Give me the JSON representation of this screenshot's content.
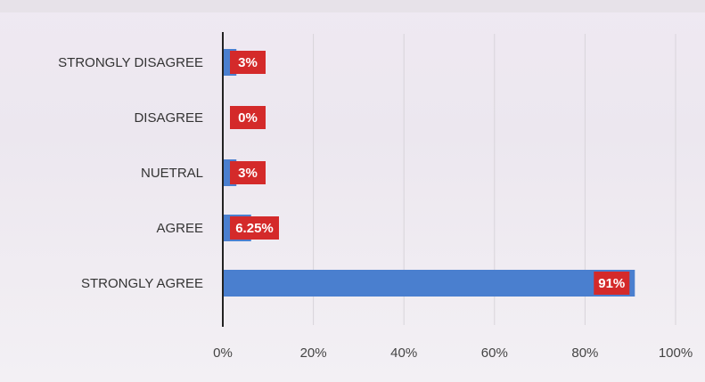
{
  "chart_data": {
    "type": "bar",
    "orientation": "horizontal",
    "title": "",
    "xlabel": "",
    "ylabel": "",
    "categories": [
      "STRONGLY DISAGREE",
      "DISAGREE",
      "NUETRAL",
      "AGREE",
      "STRONGLY AGREE"
    ],
    "values": [
      3,
      0,
      3,
      6.25,
      91
    ],
    "data_labels": [
      "3%",
      "0%",
      "3%",
      "6.25%",
      "91%"
    ],
    "xlim": [
      0,
      100
    ],
    "x_ticks": [
      "0%",
      "20%",
      "40%",
      "60%",
      "80%",
      "100%"
    ],
    "grid": true,
    "legend": "none",
    "colors": {
      "bar": "#4a7fcf",
      "label_bg": "#d42a2a",
      "axis": "#222222",
      "grid": "#d8d4da"
    }
  }
}
